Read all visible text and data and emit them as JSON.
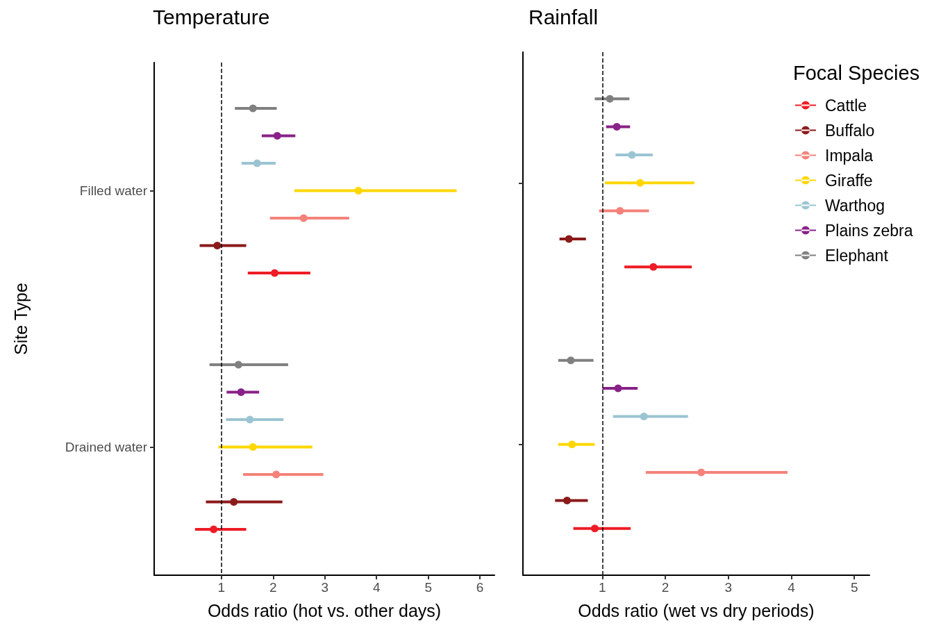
{
  "chart_data": [
    {
      "type": "scatter",
      "title": "Temperature",
      "xlabel": "Odds ratio (hot vs. other days)",
      "ylabel": "Site Type",
      "orientation": "horizontal",
      "categories": [
        "Filled water",
        "Drained water"
      ],
      "xlim": [
        -0.3,
        6.28
      ],
      "xticks": [
        1,
        2,
        3,
        4,
        5,
        6
      ],
      "grid": false,
      "legend": false,
      "marker": "circle",
      "ref_lines": [
        {
          "axis": "x",
          "value": 1,
          "line_style": "dashed",
          "color": "#000000"
        }
      ],
      "series": [
        {
          "color": "#ee1c25",
          "values": [
            2.03,
            0.85
          ],
          "errors": [
            [
              1.51,
              2.72
            ],
            [
              0.49,
              1.48
            ]
          ]
        },
        {
          "color": "#8b1a1a",
          "values": [
            0.92,
            1.24
          ],
          "errors": [
            [
              0.58,
              1.48
            ],
            [
              0.7,
              2.18
            ]
          ]
        },
        {
          "color": "#f4827a",
          "values": [
            2.59,
            2.06
          ],
          "errors": [
            [
              1.94,
              3.47
            ],
            [
              1.42,
              2.97
            ]
          ]
        },
        {
          "color": "#ffd700",
          "values": [
            3.65,
            1.61
          ],
          "errors": [
            [
              2.41,
              5.55
            ],
            [
              0.94,
              2.76
            ]
          ]
        },
        {
          "color": "#9bc4d2",
          "values": [
            1.69,
            1.55
          ],
          "errors": [
            [
              1.39,
              2.05
            ],
            [
              1.09,
              2.2
            ]
          ]
        },
        {
          "color": "#882288",
          "values": [
            2.08,
            1.38
          ],
          "errors": [
            [
              1.78,
              2.43
            ],
            [
              1.1,
              1.73
            ]
          ]
        },
        {
          "color": "#808080",
          "values": [
            1.61,
            1.33
          ],
          "errors": [
            [
              1.26,
              2.07
            ],
            [
              0.77,
              2.29
            ]
          ]
        }
      ]
    },
    {
      "type": "scatter",
      "title": "Rainfall",
      "xlabel": "Odds ratio (wet vs dry periods)",
      "orientation": "horizontal",
      "categories": [
        null,
        null
      ],
      "xlim": [
        -0.26,
        5.24
      ],
      "xticks": [
        1,
        2,
        3,
        4,
        5
      ],
      "grid": false,
      "legend": "right",
      "legend_title": "Focal Species",
      "tick_labels": "x",
      "marker": "circle",
      "ref_lines": [
        {
          "axis": "x",
          "value": 1,
          "line_style": "dashed",
          "color": "#000000"
        }
      ],
      "series": [
        {
          "name": "Cattle",
          "color": "#ee1c25",
          "values": [
            1.81,
            0.88
          ],
          "errors": [
            [
              1.35,
              2.42
            ],
            [
              0.54,
              1.45
            ]
          ]
        },
        {
          "name": "Buffalo",
          "color": "#8b1a1a",
          "values": [
            0.47,
            0.44
          ],
          "errors": [
            [
              0.32,
              0.74
            ],
            [
              0.25,
              0.77
            ]
          ]
        },
        {
          "name": "Impala",
          "color": "#f4827a",
          "values": [
            1.28,
            2.57
          ],
          "errors": [
            [
              0.95,
              1.74
            ],
            [
              1.69,
              3.94
            ]
          ]
        },
        {
          "name": "Giraffe",
          "color": "#ffd700",
          "values": [
            1.6,
            0.52
          ],
          "errors": [
            [
              1.04,
              2.46
            ],
            [
              0.3,
              0.88
            ]
          ]
        },
        {
          "name": "Warthog",
          "color": "#9bc4d2",
          "values": [
            1.47,
            1.66
          ],
          "errors": [
            [
              1.21,
              1.8
            ],
            [
              1.17,
              2.36
            ]
          ]
        },
        {
          "name": "Plains zebra",
          "color": "#882288",
          "values": [
            1.23,
            1.25
          ],
          "errors": [
            [
              1.06,
              1.44
            ],
            [
              1.0,
              1.56
            ]
          ]
        },
        {
          "name": "Elephant",
          "color": "#808080",
          "values": [
            1.12,
            0.5
          ],
          "errors": [
            [
              0.88,
              1.43
            ],
            [
              0.3,
              0.86
            ]
          ]
        }
      ]
    }
  ]
}
